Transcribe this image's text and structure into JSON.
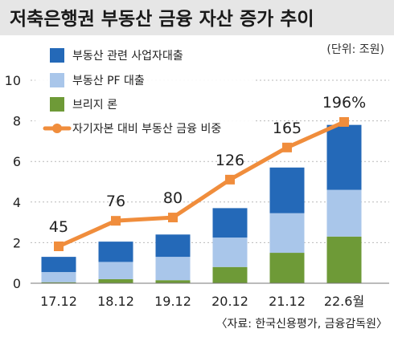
{
  "colors": {
    "background": "#ffffff",
    "title_bar": "#e6e6e6",
    "series1": "#2469b8",
    "series2": "#a9c6ea",
    "series3": "#6e9a37",
    "line": "#f08d3c"
  },
  "chart_data": {
    "type": "bar",
    "stacked": true,
    "title": "저축은행권 부동산 금융 자산 증가 추이",
    "unit_label": "(단위: 조원)",
    "source": "〈자료: 한국신용평가, 금융감독원〉",
    "categories": [
      "17.12",
      "18.12",
      "19.12",
      "20.12",
      "21.12",
      "22.6월"
    ],
    "ylim": [
      0,
      10
    ],
    "yticks": [
      0,
      2,
      4,
      6,
      8,
      10
    ],
    "grid": true,
    "legend_position": "top-left",
    "series": [
      {
        "name": "브리지 론",
        "color": "#6e9a37",
        "values": [
          0.05,
          0.2,
          0.15,
          0.8,
          1.5,
          2.3
        ]
      },
      {
        "name": "부동산 PF 대출",
        "color": "#a9c6ea",
        "values": [
          0.5,
          0.85,
          1.15,
          1.45,
          1.95,
          2.3
        ]
      },
      {
        "name": "부동산 관련 사업자대출",
        "color": "#2469b8",
        "values": [
          0.75,
          1.0,
          1.1,
          1.45,
          2.25,
          3.2
        ]
      }
    ],
    "legend_order": [
      "부동산 관련 사업자대출",
      "부동산 PF 대출",
      "브리지 론"
    ],
    "line_series": {
      "name": "자기자본 대비 부동산 금융 비중",
      "color": "#f08d3c",
      "values": [
        45,
        76,
        80,
        126,
        165,
        196
      ],
      "labels": [
        "45",
        "76",
        "80",
        "126",
        "165",
        "196%"
      ]
    }
  }
}
